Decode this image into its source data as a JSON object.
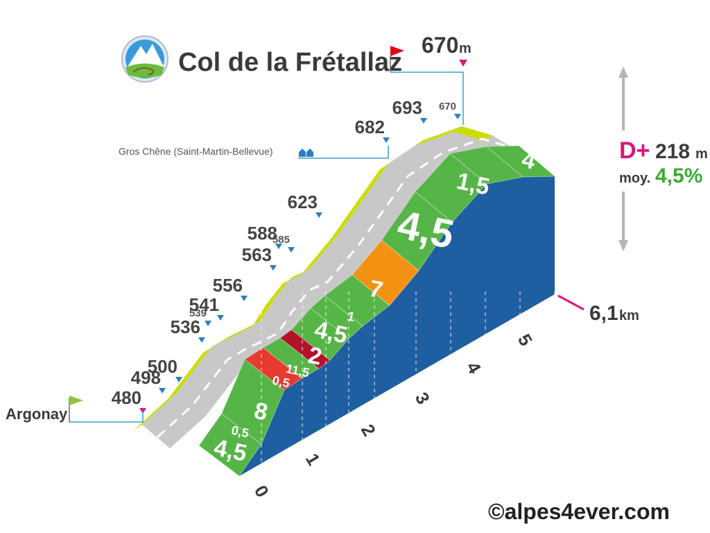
{
  "header": {
    "title": "Col de la Frétallaz",
    "summit_alt": "670",
    "summit_unit": "m"
  },
  "stats": {
    "gain_label": "D+",
    "gain_value": "218",
    "gain_unit": "m",
    "avg_label": "moy.",
    "avg_value": "4,5%"
  },
  "start_label": "Argonay",
  "waypoint_label": "Gros Chêne (Saint-Martin-Bellevue)",
  "total_distance": "6,1",
  "total_unit": "km",
  "credit": "©alpes4ever.com",
  "colors": {
    "grade_low": "#56b547",
    "grade_mid": "#f39212",
    "grade_high": "#e63b2e",
    "grade_extreme": "#b3122a",
    "side": "#1d5fa1",
    "road_edge": "#cddc00",
    "road": "#c8c8c8",
    "marker_blue": "#2d7fc1",
    "marker_pink": "#e0147a",
    "flag_green": "#8cc63f",
    "flag_red": "#e30613"
  },
  "chart_data": {
    "type": "area",
    "title": "Col de la Frétallaz",
    "x_unit": "km",
    "y_unit": "m",
    "xlim": [
      0,
      6.1
    ],
    "x_ticks": [
      "0",
      "1",
      "2",
      "3",
      "4",
      "5"
    ],
    "segments": [
      {
        "grade": "4,5",
        "color": "low"
      },
      {
        "grade": "0,5",
        "color": "low"
      },
      {
        "grade": "8",
        "color": "high"
      },
      {
        "grade": "0,5",
        "color": "low"
      },
      {
        "grade": "11,5",
        "color": "extreme"
      },
      {
        "grade": "2",
        "color": "low"
      },
      {
        "grade": "4,5",
        "color": "low"
      },
      {
        "grade": "1",
        "color": "low"
      },
      {
        "grade": "7",
        "color": "mid"
      },
      {
        "grade": "4,5",
        "color": "low"
      },
      {
        "grade": "1,5",
        "color": "low"
      },
      {
        "grade": "4",
        "color": "low"
      }
    ],
    "altitude_labels": [
      {
        "alt": "480",
        "major": true
      },
      {
        "alt": "498",
        "major": true
      },
      {
        "alt": "500",
        "major": true
      },
      {
        "alt": "536",
        "major": true
      },
      {
        "alt": "541",
        "major": true
      },
      {
        "alt": "539",
        "major": false
      },
      {
        "alt": "556",
        "major": true
      },
      {
        "alt": "563",
        "major": true
      },
      {
        "alt": "588",
        "major": true
      },
      {
        "alt": "585",
        "major": false
      },
      {
        "alt": "623",
        "major": true
      },
      {
        "alt": "682",
        "major": true
      },
      {
        "alt": "693",
        "major": true
      },
      {
        "alt": "670",
        "major": false
      }
    ]
  }
}
